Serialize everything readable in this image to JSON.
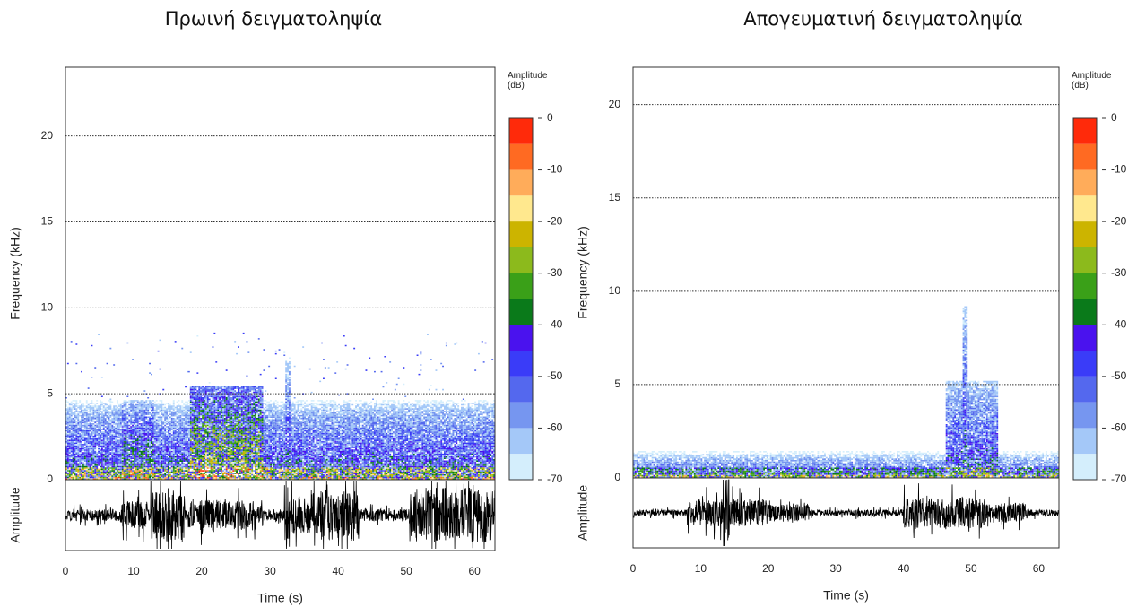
{
  "chart_data": [
    {
      "type": "spectrogram",
      "title": "Πρωινή δειγματοληψία",
      "xlabel": "Time (s)",
      "ylabel": "Frequency (kHz)",
      "amplitude_label": "Amplitude",
      "colorbar_title": "Amplitude (dB)",
      "xlim": [
        0,
        63
      ],
      "xticks": [
        0,
        10,
        20,
        30,
        40,
        50,
        60
      ],
      "ylim": [
        0,
        24
      ],
      "yticks": [
        0,
        5,
        10,
        15,
        20
      ],
      "grid": true,
      "colorbar_lim": [
        -70,
        0
      ],
      "colorbar_ticks": [
        0,
        -10,
        -20,
        -30,
        -40,
        -50,
        -60,
        -70
      ],
      "colorbar_colors": [
        "#ff2a0a",
        "#ff6a22",
        "#ffac5a",
        "#ffe88e",
        "#ccb400",
        "#8cba1c",
        "#3aa018",
        "#0a7a1a",
        "#4a12ee",
        "#3a3cf8",
        "#5468ee",
        "#7696f0",
        "#a4c8f8",
        "#d4eefc"
      ]
    },
    {
      "type": "spectrogram",
      "title": "Απογευματινή δειγματοληψία",
      "xlabel": "Time (s)",
      "ylabel": "Frequency (kHz)",
      "amplitude_label": "Amplitude",
      "colorbar_title": "Amplitude (dB)",
      "xlim": [
        0,
        63
      ],
      "xticks": [
        0,
        10,
        20,
        30,
        40,
        50,
        60
      ],
      "ylim": [
        0,
        22
      ],
      "yticks": [
        0,
        5,
        10,
        15,
        20
      ],
      "grid": true,
      "colorbar_lim": [
        -70,
        0
      ],
      "colorbar_ticks": [
        0,
        -10,
        -20,
        -30,
        -40,
        -50,
        -60,
        -70
      ],
      "colorbar_colors": [
        "#ff2a0a",
        "#ff6a22",
        "#ffac5a",
        "#ffe88e",
        "#ccb400",
        "#8cba1c",
        "#3aa018",
        "#0a7a1a",
        "#4a12ee",
        "#3a3cf8",
        "#5468ee",
        "#7696f0",
        "#a4c8f8",
        "#d4eefc"
      ]
    }
  ]
}
